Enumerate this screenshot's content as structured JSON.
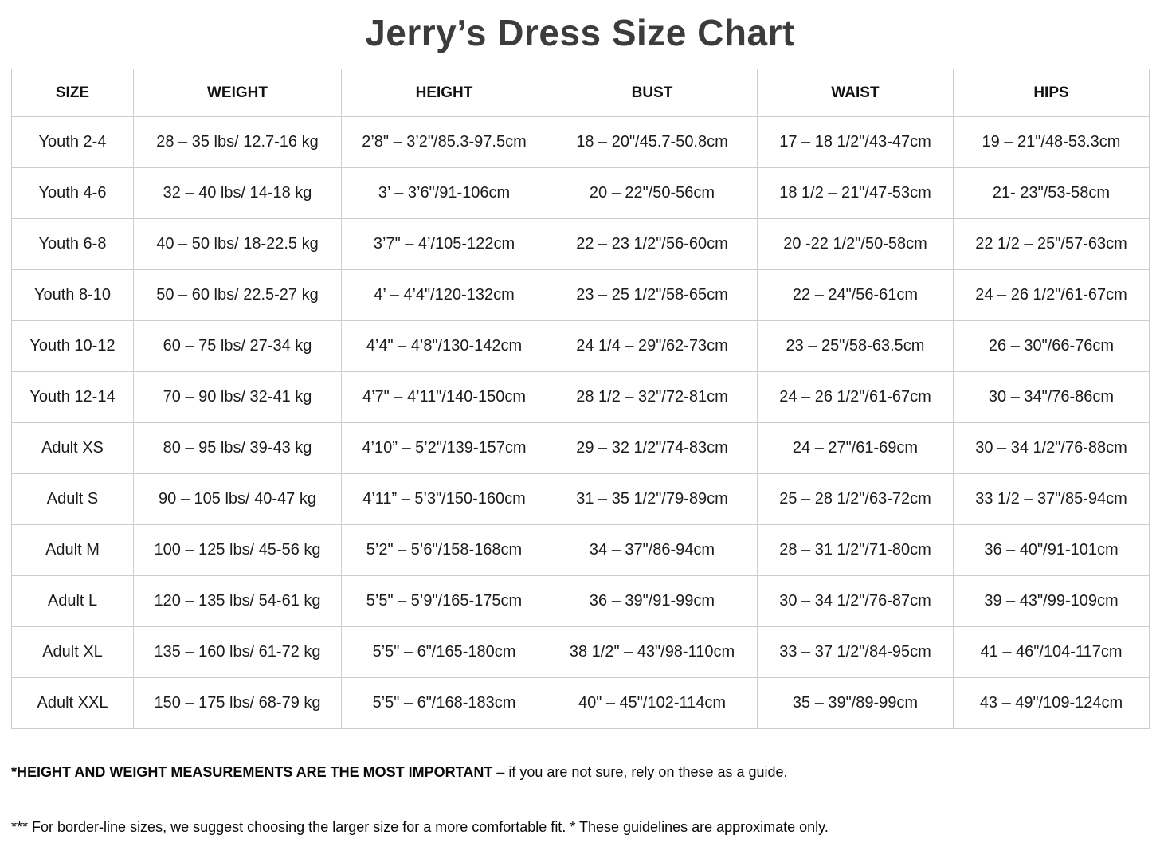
{
  "page": {
    "title": "Jerry’s Dress Size Chart"
  },
  "table": {
    "headers": [
      "SIZE",
      "WEIGHT",
      "HEIGHT",
      "BUST",
      "WAIST",
      "HIPS"
    ],
    "rows": [
      [
        "Youth 2-4",
        "28 – 35 lbs/ 12.7-16 kg",
        "2’8\" – 3’2\"/85.3-97.5cm",
        "18 – 20\"/45.7-50.8cm",
        "17 – 18 1/2\"/43-47cm",
        "19 – 21\"/48-53.3cm"
      ],
      [
        "Youth 4-6",
        "32 – 40 lbs/ 14-18 kg",
        "3’ – 3’6\"/91-106cm",
        "20 – 22\"/50-56cm",
        "18 1/2 – 21\"/47-53cm",
        "21- 23\"/53-58cm"
      ],
      [
        "Youth 6-8",
        "40 – 50 lbs/ 18-22.5 kg",
        "3’7\" – 4’/105-122cm",
        "22 – 23 1/2\"/56-60cm",
        "20 -22 1/2\"/50-58cm",
        "22 1/2 – 25\"/57-63cm"
      ],
      [
        "Youth 8-10",
        "50 – 60 lbs/ 22.5-27 kg",
        "4’ – 4’4\"/120-132cm",
        "23 – 25 1/2\"/58-65cm",
        "22 – 24\"/56-61cm",
        "24 – 26 1/2\"/61-67cm"
      ],
      [
        "Youth 10-12",
        "60 – 75 lbs/ 27-34 kg",
        "4’4\" – 4’8\"/130-142cm",
        "24 1/4 – 29\"/62-73cm",
        "23 – 25\"/58-63.5cm",
        "26 – 30\"/66-76cm"
      ],
      [
        "Youth 12-14",
        "70 – 90 lbs/ 32-41 kg",
        "4’7\" – 4’11\"/140-150cm",
        "28 1/2 – 32\"/72-81cm",
        "24 – 26 1/2\"/61-67cm",
        "30 – 34\"/76-86cm"
      ],
      [
        "Adult XS",
        "80 – 95 lbs/ 39-43 kg",
        "4’10” – 5’2\"/139-157cm",
        "29 – 32 1/2\"/74-83cm",
        "24 – 27\"/61-69cm",
        "30 – 34 1/2\"/76-88cm"
      ],
      [
        "Adult S",
        "90 – 105 lbs/ 40-47 kg",
        "4’11” – 5’3\"/150-160cm",
        "31 – 35 1/2\"/79-89cm",
        "25 – 28 1/2\"/63-72cm",
        "33 1/2 – 37\"/85-94cm"
      ],
      [
        "Adult M",
        "100 – 125 lbs/ 45-56 kg",
        "5’2\" – 5’6\"/158-168cm",
        "34 – 37\"/86-94cm",
        "28 – 31 1/2\"/71-80cm",
        "36 – 40\"/91-101cm"
      ],
      [
        "Adult L",
        "120 – 135 lbs/ 54-61 kg",
        "5’5\" – 5’9\"/165-175cm",
        "36 – 39\"/91-99cm",
        "30 – 34 1/2\"/76-87cm",
        "39 – 43\"/99-109cm"
      ],
      [
        "Adult XL",
        "135 – 160 lbs/ 61-72 kg",
        "5’5\" – 6\"/165-180cm",
        "38 1/2\" – 43\"/98-110cm",
        "33 – 37 1/2\"/84-95cm",
        "41 – 46\"/104-117cm"
      ],
      [
        "Adult XXL",
        "150 – 175 lbs/ 68-79 kg",
        "5’5\" – 6\"/168-183cm",
        "40\" – 45\"/102-114cm",
        "35 – 39\"/89-99cm",
        "43 – 49\"/109-124cm"
      ]
    ]
  },
  "notes": {
    "note1_bold": "*HEIGHT AND WEIGHT MEASUREMENTS ARE THE MOST IMPORTANT",
    "note1_rest": " – if you are not sure, rely on these as a guide.",
    "note2": "*** For border-line sizes, we suggest choosing the larger size for a more comfortable fit. * These guidelines are approximate only."
  }
}
